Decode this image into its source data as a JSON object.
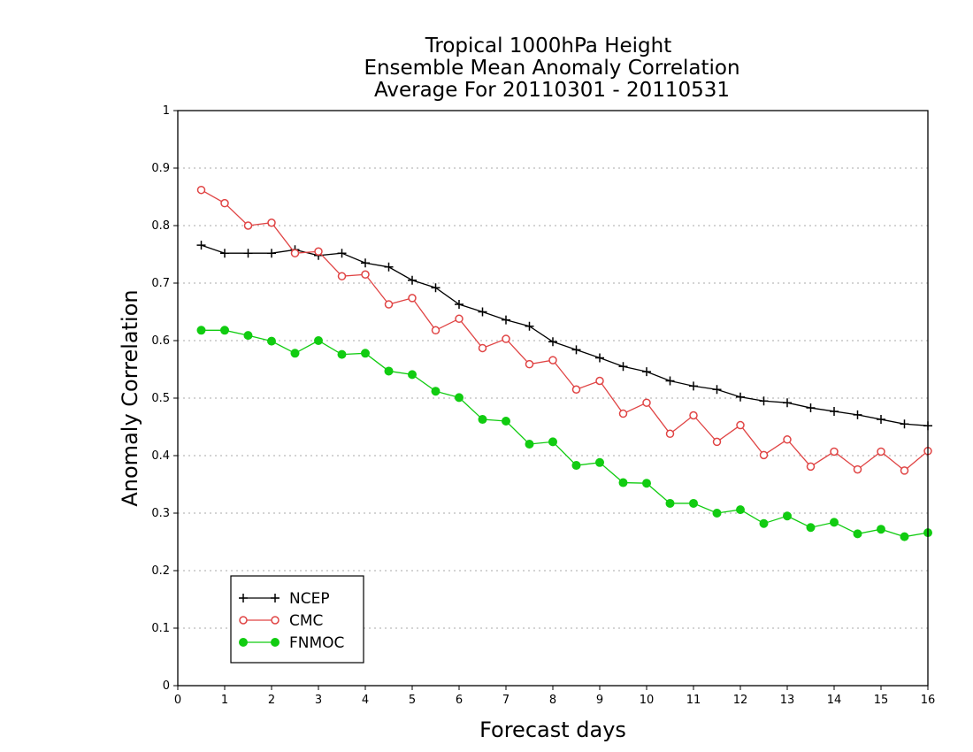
{
  "chart_data": {
    "type": "line",
    "title_lines": [
      "Tropical 1000hPa Height",
      "Ensemble Mean Anomaly Correlation",
      "Average For 20110301 - 20110531"
    ],
    "xlabel": "Forecast days",
    "ylabel": "Anomaly Correlation",
    "xlim": [
      0,
      16
    ],
    "ylim": [
      0,
      1
    ],
    "x_ticks": [
      "0",
      "1",
      "2",
      "3",
      "4",
      "5",
      "6",
      "7",
      "8",
      "9",
      "10",
      "11",
      "12",
      "13",
      "14",
      "15",
      "16"
    ],
    "y_ticks": [
      "0",
      "0.1",
      "0.2",
      "0.3",
      "0.4",
      "0.5",
      "0.6",
      "0.7",
      "0.8",
      "0.9",
      "1"
    ],
    "grid": "horizontal dotted",
    "legend_position": "bottom-left",
    "x": [
      0.5,
      1,
      1.5,
      2,
      2.5,
      3,
      3.5,
      4,
      4.5,
      5,
      5.5,
      6,
      6.5,
      7,
      7.5,
      8,
      8.5,
      9,
      9.5,
      10,
      10.5,
      11,
      11.5,
      12,
      12.5,
      13,
      13.5,
      14,
      14.5,
      15,
      15.5,
      16
    ],
    "series": [
      {
        "name": "NCEP",
        "color": "#000000",
        "marker": "plus",
        "values": [
          0.766,
          0.752,
          0.752,
          0.752,
          0.758,
          0.748,
          0.752,
          0.735,
          0.728,
          0.705,
          0.692,
          0.663,
          0.65,
          0.636,
          0.625,
          0.598,
          0.584,
          0.57,
          0.555,
          0.546,
          0.53,
          0.521,
          0.515,
          0.502,
          0.495,
          0.492,
          0.483,
          0.477,
          0.471,
          0.463,
          0.455,
          0.452
        ]
      },
      {
        "name": "CMC",
        "color": "#e04444",
        "marker": "open-circle",
        "values": [
          0.862,
          0.839,
          0.8,
          0.805,
          0.752,
          0.755,
          0.712,
          0.715,
          0.663,
          0.674,
          0.618,
          0.638,
          0.587,
          0.603,
          0.559,
          0.566,
          0.515,
          0.53,
          0.473,
          0.492,
          0.438,
          0.47,
          0.424,
          0.453,
          0.401,
          0.428,
          0.381,
          0.407,
          0.376,
          0.407,
          0.374,
          0.408
        ]
      },
      {
        "name": "FNMOC",
        "color": "#11cc11",
        "marker": "filled-circle",
        "values": [
          0.618,
          0.618,
          0.609,
          0.599,
          0.578,
          0.6,
          0.576,
          0.578,
          0.547,
          0.541,
          0.512,
          0.501,
          0.463,
          0.46,
          0.42,
          0.424,
          0.383,
          0.388,
          0.353,
          0.352,
          0.317,
          0.317,
          0.3,
          0.306,
          0.282,
          0.295,
          0.275,
          0.284,
          0.264,
          0.272,
          0.259,
          0.266
        ]
      }
    ]
  }
}
